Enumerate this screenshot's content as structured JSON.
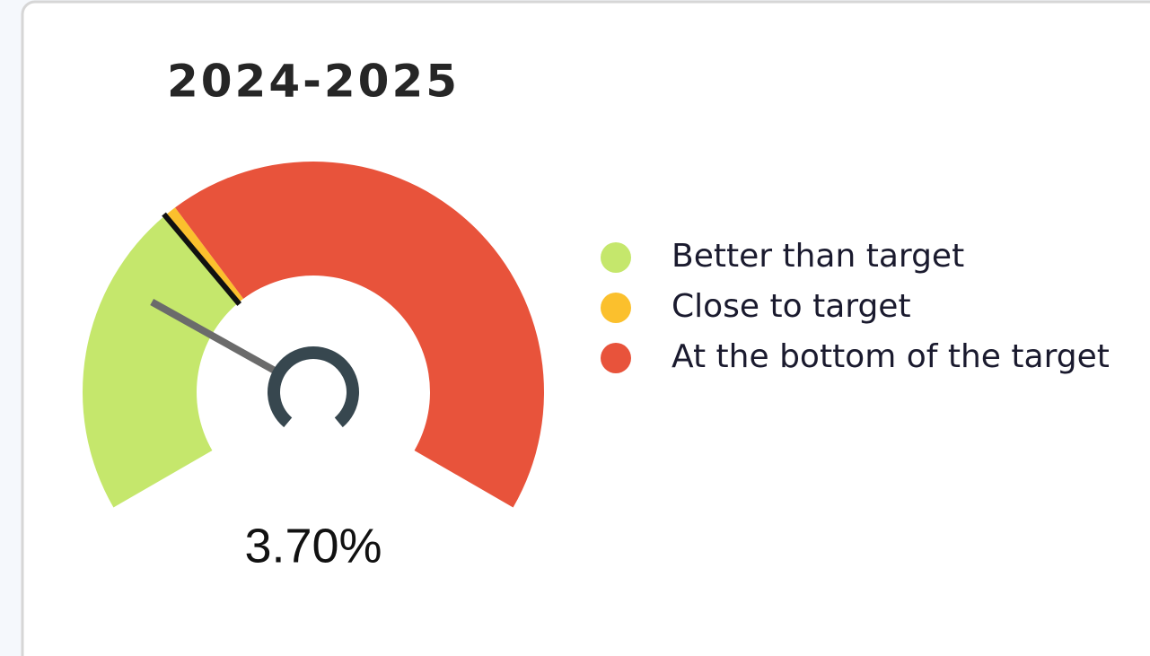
{
  "chart_data": {
    "type": "gauge",
    "title": "2024-2025",
    "ylim": [
      0,
      15
    ],
    "value": 3.7,
    "value_label": "3.70%",
    "target": 5,
    "bands": [
      {
        "name": "Better than target",
        "color": "#c5e76c",
        "from": 0,
        "to": 5
      },
      {
        "name": "Close to target",
        "color": "#fbc02d",
        "from": 5,
        "to": 5.2
      },
      {
        "name": "At the bottom of the target",
        "color": "#e8533b",
        "from": 5.2,
        "to": 15
      }
    ],
    "legend": "right"
  }
}
